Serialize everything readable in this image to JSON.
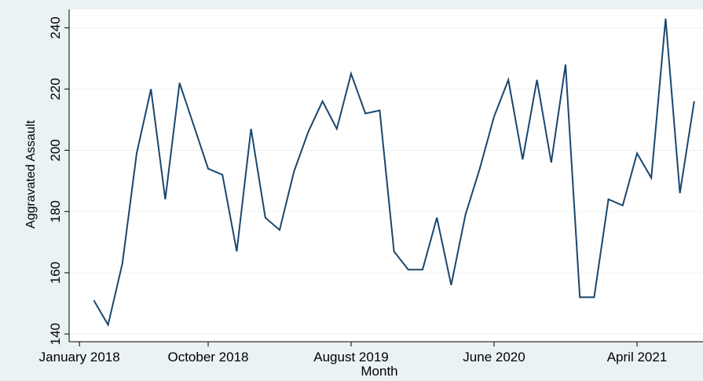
{
  "chart_data": {
    "type": "line",
    "x_label": "Month",
    "y_label": "Aggravated Assault",
    "x": [
      "2018-02",
      "2018-03",
      "2018-04",
      "2018-05",
      "2018-06",
      "2018-07",
      "2018-08",
      "2018-09",
      "2018-10",
      "2018-11",
      "2018-12",
      "2019-01",
      "2019-02",
      "2019-03",
      "2019-04",
      "2019-05",
      "2019-06",
      "2019-07",
      "2019-08",
      "2019-09",
      "2019-10",
      "2019-11",
      "2019-12",
      "2020-01",
      "2020-02",
      "2020-03",
      "2020-04",
      "2020-05",
      "2020-06",
      "2020-07",
      "2020-08",
      "2020-09",
      "2020-10",
      "2020-11",
      "2020-12",
      "2021-01",
      "2021-02",
      "2021-03",
      "2021-04",
      "2021-05",
      "2021-06",
      "2021-07",
      "2021-08"
    ],
    "series": [
      {
        "name": "Aggravated Assault",
        "color": "#1a476f",
        "values": [
          151,
          143,
          163,
          199,
          220,
          184,
          222,
          208,
          194,
          192,
          167,
          207,
          178,
          174,
          193,
          206,
          216,
          207,
          225,
          212,
          213,
          167,
          161,
          161,
          178,
          156,
          179,
          194,
          211,
          223,
          197,
          223,
          196,
          228,
          152,
          152,
          184,
          182,
          199,
          191,
          243,
          186,
          216
        ]
      }
    ],
    "xlim": [
      "2017-12",
      "2021-09"
    ],
    "xticks": [
      {
        "value": "2018-01",
        "label": "January 2018"
      },
      {
        "value": "2018-10",
        "label": "October 2018"
      },
      {
        "value": "2019-08",
        "label": "August 2019"
      },
      {
        "value": "2020-06",
        "label": "June 2020"
      },
      {
        "value": "2021-04",
        "label": "April 2021"
      }
    ],
    "ylim": [
      138,
      246
    ],
    "yticks": [
      140,
      160,
      180,
      200,
      220,
      240
    ],
    "grid": true
  }
}
